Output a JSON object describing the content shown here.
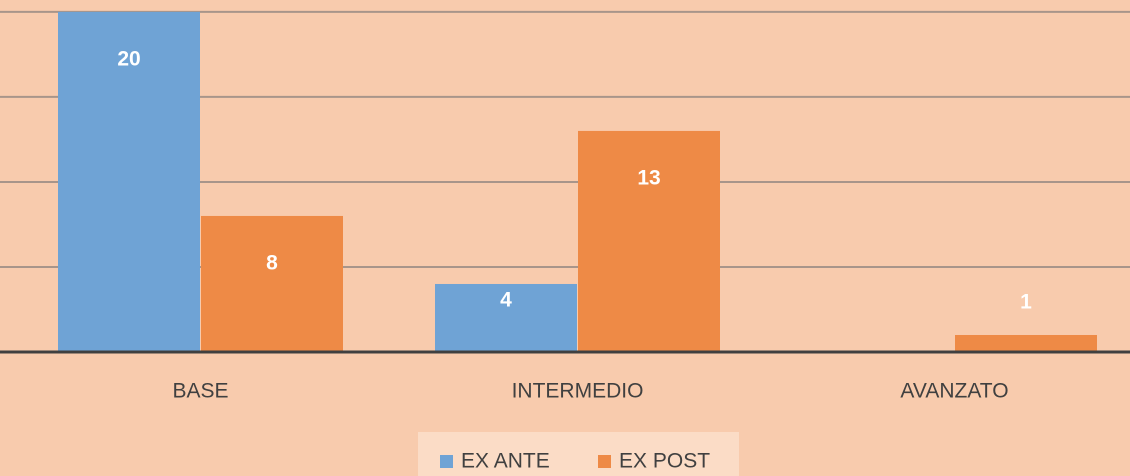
{
  "chart_data": {
    "type": "bar",
    "categories": [
      "BASE",
      "INTERMEDIO",
      "AVANZATO"
    ],
    "series": [
      {
        "name": "EX ANTE",
        "color": "#6fa3d5",
        "values": [
          20,
          4,
          null
        ]
      },
      {
        "name": "EX POST",
        "color": "#ee8a46",
        "values": [
          8,
          13,
          1
        ]
      }
    ],
    "ylim": [
      0,
      20.7
    ],
    "yticks": [
      0,
      5,
      10,
      15,
      20
    ],
    "grid": true
  }
}
